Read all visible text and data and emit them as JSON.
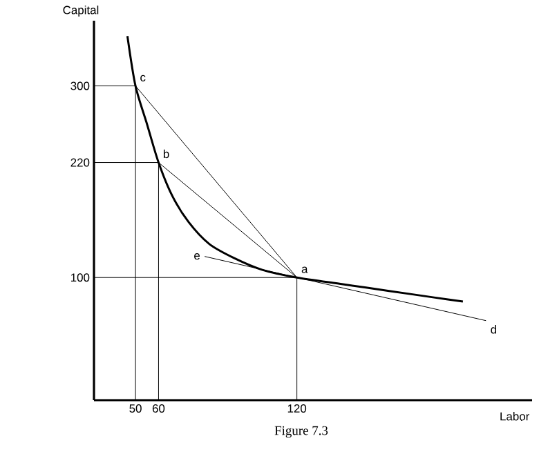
{
  "chart_data": {
    "type": "line",
    "xlabel": "Labor",
    "ylabel": "Capital",
    "xlim": [
      32,
      222
    ],
    "ylim": [
      -28,
      368
    ],
    "xticks": [
      50,
      60,
      120
    ],
    "yticks": [
      100,
      220,
      300
    ],
    "grid": false,
    "marker": "none",
    "line_style": "solid",
    "series": [
      {
        "color": "#000000",
        "x": [
          46.5,
          50,
          55,
          60,
          66,
          73,
          82,
          93,
          105,
          120,
          140,
          160,
          180,
          192
        ],
        "values": [
          352,
          300,
          260,
          220,
          185,
          158,
          135,
          120,
          108,
          100,
          93,
          86,
          79,
          75
        ]
      },
      {
        "color": "#000000",
        "x": [
          50,
          120
        ],
        "values": [
          300,
          100
        ]
      },
      {
        "color": "#000000",
        "x": [
          60,
          120
        ],
        "values": [
          220,
          100
        ]
      },
      {
        "color": "#000000",
        "x": [
          80,
          202
        ],
        "values": [
          122,
          55
        ]
      },
      {
        "color": "#000000",
        "x": [
          32,
          50,
          50
        ],
        "values": [
          300,
          300,
          -28
        ]
      },
      {
        "color": "#000000",
        "x": [
          32,
          60,
          60
        ],
        "values": [
          220,
          220,
          -28
        ]
      },
      {
        "color": "#000000",
        "x": [
          32,
          120,
          120
        ],
        "values": [
          100,
          100,
          -28
        ]
      }
    ],
    "annotations": [
      {
        "text": "c",
        "x": 50,
        "y": 300
      },
      {
        "text": "b",
        "x": 60,
        "y": 220
      },
      {
        "text": "a",
        "x": 120,
        "y": 100
      },
      {
        "text": "e",
        "x": 80,
        "y": 122
      },
      {
        "text": "d",
        "x": 202,
        "y": 55
      },
      "Figure 7.3"
    ]
  }
}
